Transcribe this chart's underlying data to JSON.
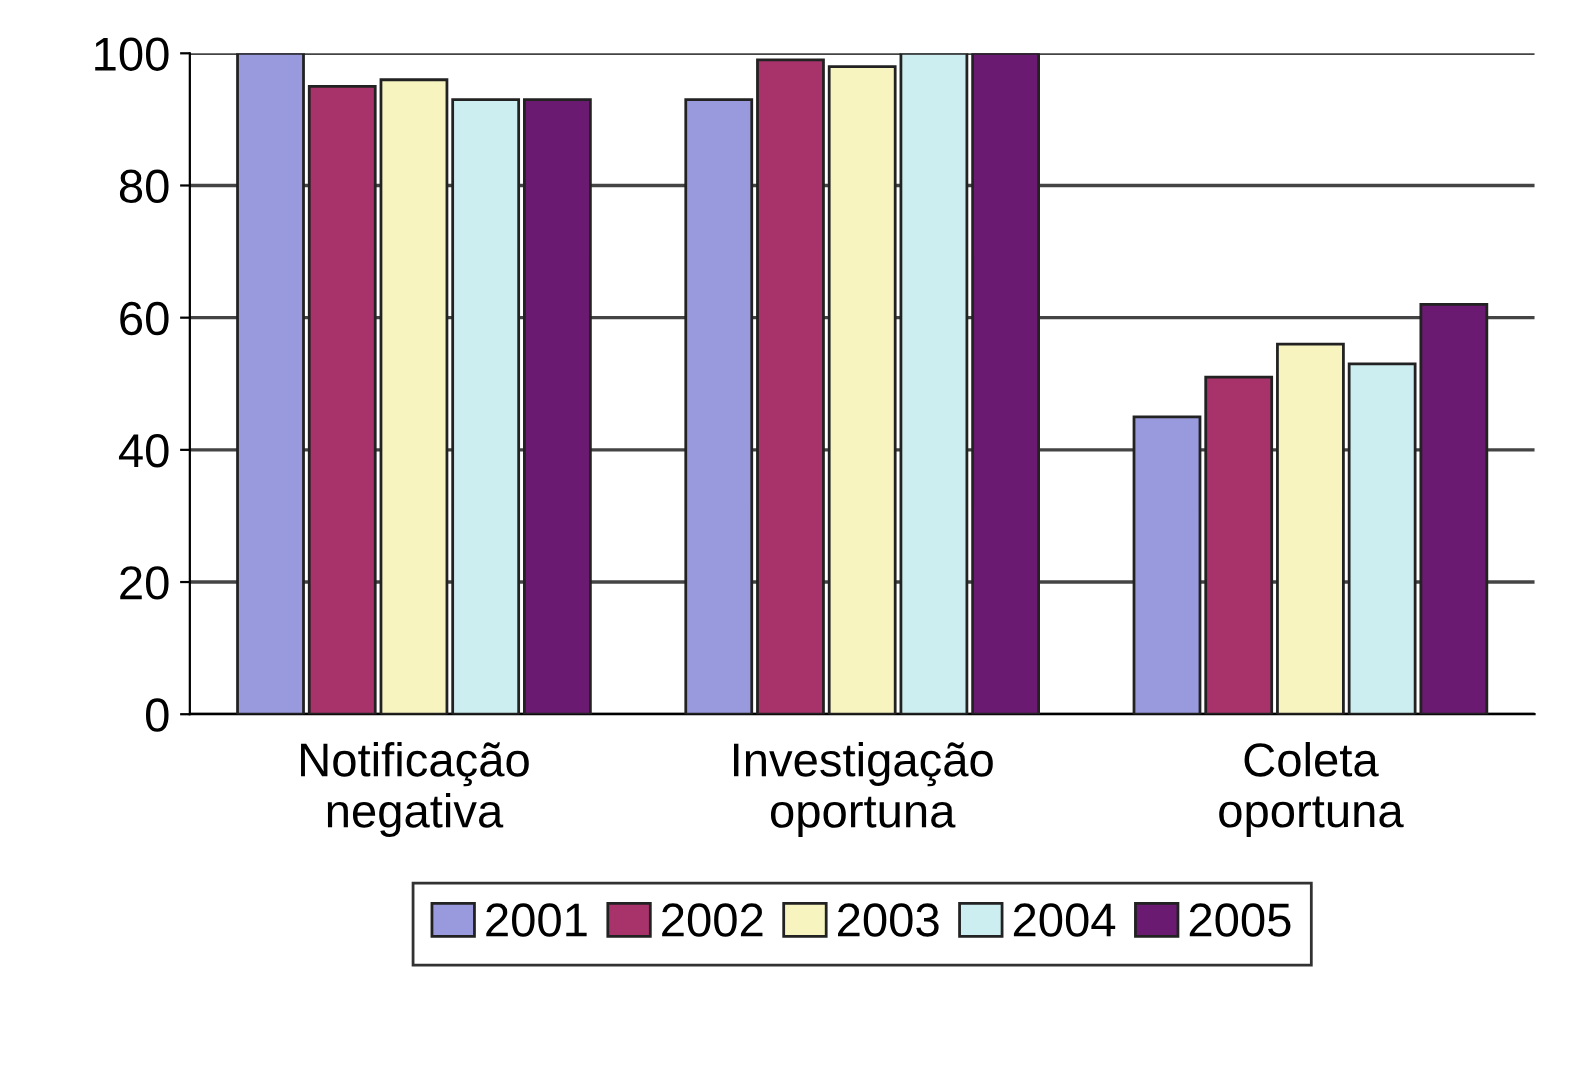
{
  "chart_data": {
    "type": "bar",
    "categories": [
      "Notificação\nnegativa",
      "Investigação\noportuna",
      "Coleta\noportuna"
    ],
    "series": [
      {
        "name": "2001",
        "color": "#9999dd",
        "values": [
          100,
          93,
          45
        ]
      },
      {
        "name": "2002",
        "color": "#a8336a",
        "values": [
          95,
          99,
          51
        ]
      },
      {
        "name": "2003",
        "color": "#f8f4c0",
        "values": [
          96,
          98,
          56
        ]
      },
      {
        "name": "2004",
        "color": "#cceef0",
        "values": [
          93,
          100,
          53
        ]
      },
      {
        "name": "2005",
        "color": "#6a1a70",
        "values": [
          93,
          100,
          62
        ]
      }
    ],
    "ylim": [
      0,
      100
    ],
    "yticks": [
      0,
      20,
      40,
      60,
      80,
      100
    ],
    "grid": "y",
    "legend": "bottom"
  }
}
